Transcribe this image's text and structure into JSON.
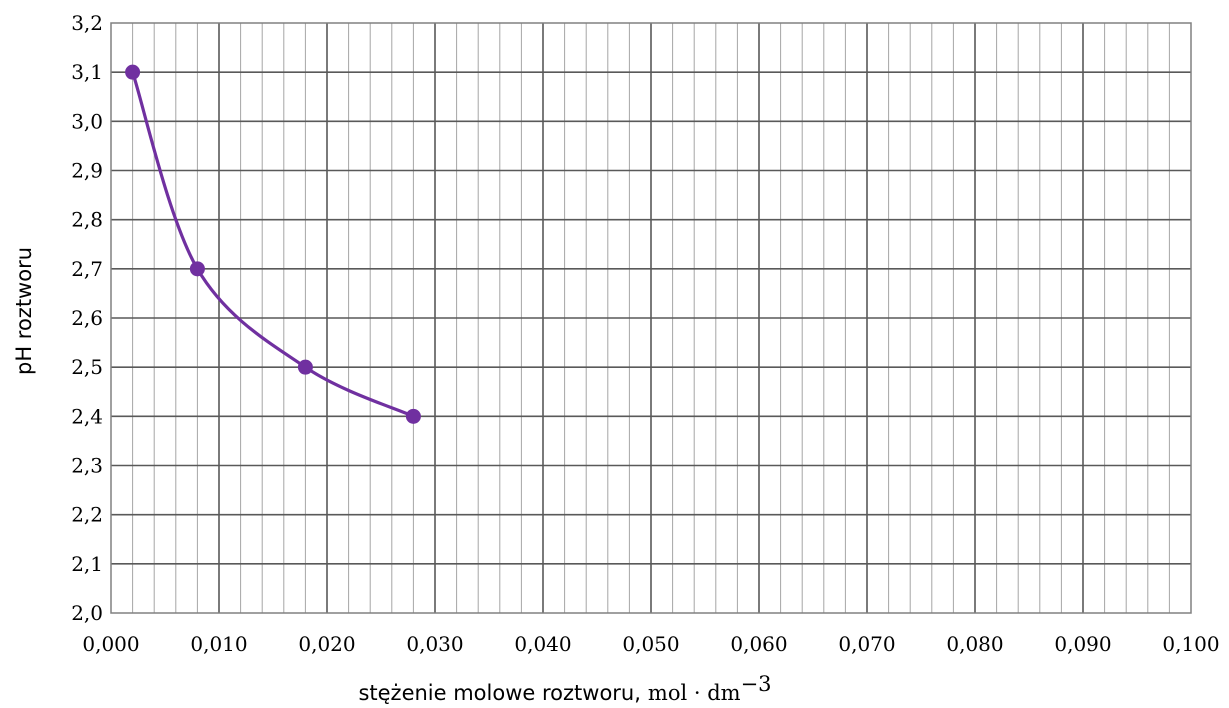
{
  "chart_data": {
    "type": "line",
    "title": "",
    "xlabel": "stężenie molowe roztworu,",
    "xlabel_unit": "mol · dm",
    "xlabel_unit_exp": "−3",
    "ylabel": "pH roztworu",
    "xlim": [
      0,
      0.1
    ],
    "ylim": [
      2.0,
      3.2
    ],
    "x_ticks": [
      "0,000",
      "0,010",
      "0,020",
      "0,030",
      "0,040",
      "0,050",
      "0,060",
      "0,070",
      "0,080",
      "0,090",
      "0,100"
    ],
    "y_ticks": [
      "2,0",
      "2,1",
      "2,2",
      "2,3",
      "2,4",
      "2,5",
      "2,6",
      "2,7",
      "2,8",
      "2,9",
      "3,0",
      "3,1",
      "3,2"
    ],
    "grid": true,
    "minor_grid_x": true,
    "series": [
      {
        "x": [
          0.002,
          0.008,
          0.018,
          0.028
        ],
        "y": [
          3.1,
          2.7,
          2.5,
          2.4
        ],
        "color": "#7030a0",
        "smooth": true,
        "markers": true
      }
    ]
  }
}
